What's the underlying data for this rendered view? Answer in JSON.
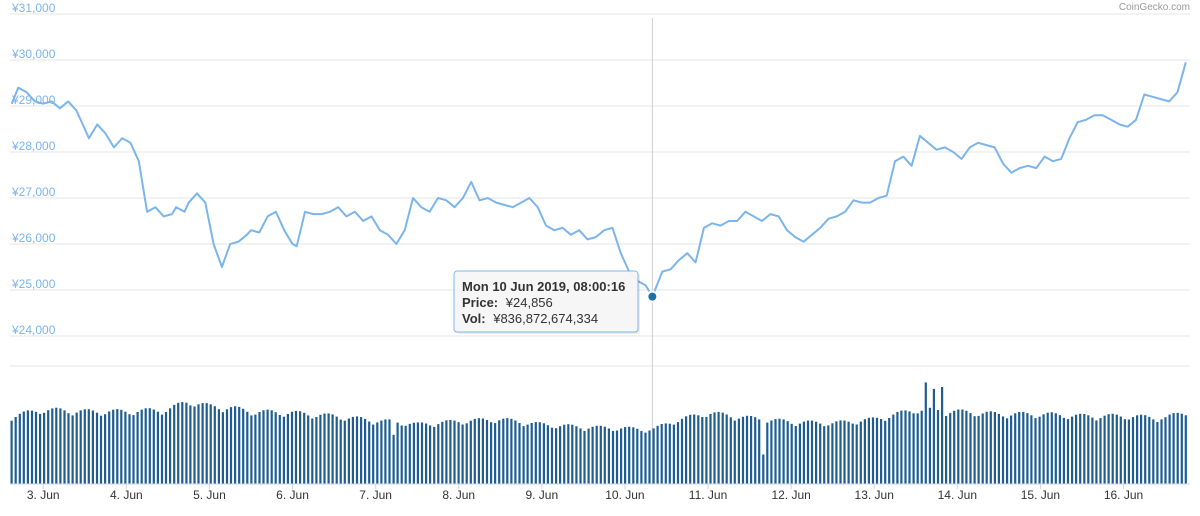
{
  "credit": "CoinGecko.com",
  "colors": {
    "line": "#7cb5ec",
    "volume": "#1f5d91",
    "marker": "#1f6fa8",
    "grid": "#e6e6e6",
    "crosshair": "#cccccc"
  },
  "tooltip": {
    "date": "Mon 10 Jun 2019, 08:00:16",
    "price_label": "Price:",
    "price_value": "¥24,856",
    "vol_label": "Vol:",
    "vol_value": "¥836,872,674,334"
  },
  "chart_data": {
    "type": "line",
    "title": "",
    "xlabel": "",
    "ylabel": "",
    "ylim": [
      23000,
      31000
    ],
    "yticks": [
      31000,
      30000,
      29000,
      28000,
      27000,
      26000,
      25000,
      24000
    ],
    "ytick_labels": [
      "¥31,000",
      "¥30,000",
      "¥29,000",
      "¥28,000",
      "¥27,000",
      "¥26,000",
      "¥25,000",
      "¥24,000"
    ],
    "x_domain": [
      2.6,
      16.8
    ],
    "xticks": [
      3,
      4,
      5,
      6,
      7,
      8,
      9,
      10,
      11,
      12,
      13,
      14,
      15,
      16
    ],
    "xtick_labels": [
      "3. Jun",
      "4. Jun",
      "5. Jun",
      "6. Jun",
      "7. Jun",
      "8. Jun",
      "9. Jun",
      "10. Jun",
      "11. Jun",
      "12. Jun",
      "13. Jun",
      "14. Jun",
      "15. Jun",
      "16. Jun"
    ],
    "highlight_x": 10.33,
    "series": [
      {
        "x": [
          2.62,
          2.7,
          2.8,
          2.9,
          3.0,
          3.1,
          3.2,
          3.3,
          3.4,
          3.5,
          3.55,
          3.65,
          3.75,
          3.85,
          3.95,
          4.05,
          4.15,
          4.25,
          4.35,
          4.45,
          4.55,
          4.6,
          4.7,
          4.75,
          4.85,
          4.95,
          5.05,
          5.15,
          5.25,
          5.35,
          5.45,
          5.5,
          5.6,
          5.7,
          5.8,
          5.9,
          6.0,
          6.05,
          6.15,
          6.25,
          6.35,
          6.45,
          6.55,
          6.65,
          6.75,
          6.85,
          6.95,
          7.05,
          7.15,
          7.25,
          7.35,
          7.45,
          7.55,
          7.65,
          7.75,
          7.85,
          7.95,
          8.05,
          8.15,
          8.25,
          8.35,
          8.45,
          8.55,
          8.65,
          8.75,
          8.85,
          8.95,
          9.05,
          9.15,
          9.25,
          9.35,
          9.45,
          9.55,
          9.65,
          9.75,
          9.85,
          9.95,
          10.05,
          10.15,
          10.25,
          10.33,
          10.45,
          10.55,
          10.65,
          10.75,
          10.85,
          10.95,
          11.05,
          11.15,
          11.25,
          11.35,
          11.45,
          11.55,
          11.65,
          11.75,
          11.85,
          11.95,
          12.05,
          12.15,
          12.25,
          12.35,
          12.45,
          12.55,
          12.65,
          12.75,
          12.85,
          12.95,
          13.05,
          13.15,
          13.25,
          13.35,
          13.45,
          13.55,
          13.65,
          13.75,
          13.85,
          13.95,
          14.05,
          14.15,
          14.25,
          14.35,
          14.45,
          14.55,
          14.65,
          14.75,
          14.85,
          14.95,
          15.05,
          15.15,
          15.25,
          15.35,
          15.45,
          15.55,
          15.65,
          15.75,
          15.85,
          15.95,
          16.05,
          16.15,
          16.25,
          16.35,
          16.45,
          16.55,
          16.65,
          16.75
        ],
        "values": [
          29050,
          29400,
          29300,
          29100,
          29050,
          29100,
          28950,
          29100,
          28900,
          28500,
          28300,
          28600,
          28400,
          28100,
          28300,
          28200,
          27800,
          26700,
          26800,
          26600,
          26650,
          26800,
          26700,
          26900,
          27100,
          26900,
          26000,
          25500,
          26000,
          26050,
          26200,
          26300,
          26250,
          26600,
          26700,
          26300,
          26000,
          25950,
          26700,
          26650,
          26650,
          26700,
          26800,
          26600,
          26700,
          26500,
          26600,
          26300,
          26200,
          26000,
          26300,
          27000,
          26800,
          26700,
          27000,
          26950,
          26800,
          27000,
          27350,
          26950,
          27000,
          26900,
          26850,
          26800,
          26900,
          27000,
          26800,
          26400,
          26300,
          26350,
          26200,
          26300,
          26100,
          26150,
          26300,
          26350,
          25800,
          25400,
          25200,
          25100,
          24856,
          25400,
          25450,
          25650,
          25800,
          25600,
          26350,
          26450,
          26400,
          26500,
          26500,
          26700,
          26600,
          26500,
          26650,
          26600,
          26300,
          26150,
          26050,
          26200,
          26350,
          26550,
          26600,
          26700,
          26950,
          26900,
          26900,
          27000,
          27050,
          27800,
          27900,
          27700,
          28350,
          28200,
          28050,
          28100,
          28000,
          27850,
          28100,
          28200,
          28150,
          28100,
          27750,
          27550,
          27650,
          27700,
          27650,
          27900,
          27800,
          27850,
          28300,
          28650,
          28700,
          28800,
          28800,
          28700,
          28600,
          28550,
          28700,
          29250,
          29200,
          29150,
          29100,
          29300,
          29950
        ]
      }
    ],
    "volume": {
      "ylim": [
        0,
        1.8
      ],
      "x_range": [
        2.62,
        16.75
      ],
      "count": 290,
      "anchors_x": [
        2.62,
        3.0,
        3.5,
        4.0,
        4.5,
        4.75,
        5.0,
        5.25,
        5.5,
        6.0,
        6.5,
        7.0,
        7.25,
        7.5,
        8.0,
        8.5,
        9.0,
        9.5,
        10.0,
        10.33,
        10.6,
        11.0,
        11.5,
        12.0,
        12.5,
        13.0,
        13.5,
        14.0,
        14.5,
        15.0,
        15.5,
        16.0,
        16.5,
        16.75
      ],
      "anchors_v": [
        1.05,
        1.15,
        1.12,
        1.12,
        1.15,
        1.28,
        1.2,
        1.18,
        1.12,
        1.1,
        1.05,
        0.98,
        0.96,
        0.92,
        0.97,
        1.0,
        0.92,
        0.88,
        0.86,
        0.84,
        0.98,
        1.1,
        1.02,
        0.96,
        0.94,
        1.0,
        1.15,
        1.12,
        1.08,
        1.08,
        1.05,
        1.05,
        1.02,
        1.12
      ],
      "spikes": [
        [
          13.6,
          1.55
        ],
        [
          13.7,
          1.45
        ],
        [
          13.82,
          1.48
        ],
        [
          11.65,
          0.45
        ],
        [
          7.22,
          0.75
        ]
      ]
    }
  }
}
